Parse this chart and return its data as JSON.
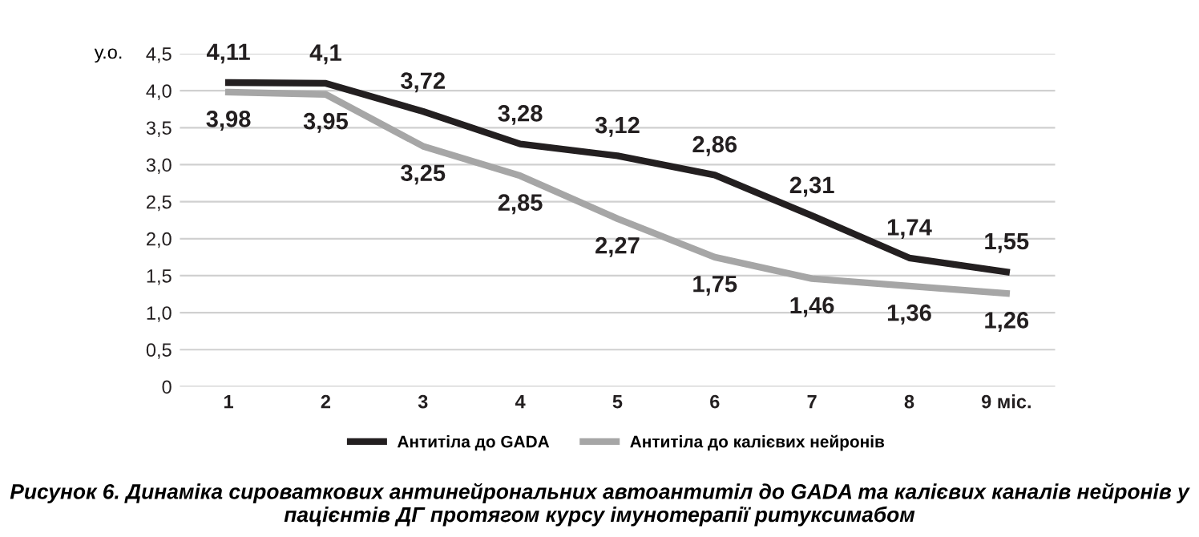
{
  "chart_data": {
    "type": "line",
    "ylabel": "у.о.",
    "categories": [
      "1",
      "2",
      "3",
      "4",
      "5",
      "6",
      "7",
      "8",
      "9 міс."
    ],
    "series": [
      {
        "name": "Антитіла до GADA",
        "color": "#231f20",
        "values": [
          4.11,
          4.1,
          3.72,
          3.28,
          3.12,
          2.86,
          2.31,
          1.74,
          1.55
        ],
        "value_labels": [
          "4,11",
          "4,1",
          "3,72",
          "3,28",
          "3,12",
          "2,86",
          "2,31",
          "1,74",
          "1,55"
        ]
      },
      {
        "name": "Антитіла до калієвих нейронів",
        "color": "#a6a6a6",
        "values": [
          3.98,
          3.95,
          3.25,
          2.85,
          2.27,
          1.75,
          1.46,
          1.36,
          1.26
        ],
        "value_labels": [
          "3,98",
          "3,95",
          "3,25",
          "2,85",
          "2,27",
          "1,75",
          "1,46",
          "1,36",
          "1,26"
        ]
      }
    ],
    "ylim": [
      0,
      4.5
    ],
    "yticks": [
      0,
      {
        "value": 0.5,
        "label": "0,5"
      },
      {
        "value": 1.0,
        "label": "1,0"
      },
      {
        "value": 1.5,
        "label": "1,5"
      },
      {
        "value": 2.0,
        "label": "2,0"
      },
      {
        "value": 2.5,
        "label": "2,5"
      },
      {
        "value": 3.0,
        "label": "3,0"
      },
      {
        "value": 3.5,
        "label": "3,5"
      },
      {
        "value": 4.0,
        "label": "4,0"
      },
      {
        "value": 4.5,
        "label": "4,5"
      }
    ],
    "grid": "y",
    "legend": "bottom",
    "marker": "none",
    "line_style": "solid",
    "annotations": [
      "Рисунок 6. Динаміка сироваткових антинейрональних автоантитіл до GADA та калієвих каналів нейронів у пацієнтів ДГ протягом курсу імунотерапії ритуксимабом"
    ]
  }
}
